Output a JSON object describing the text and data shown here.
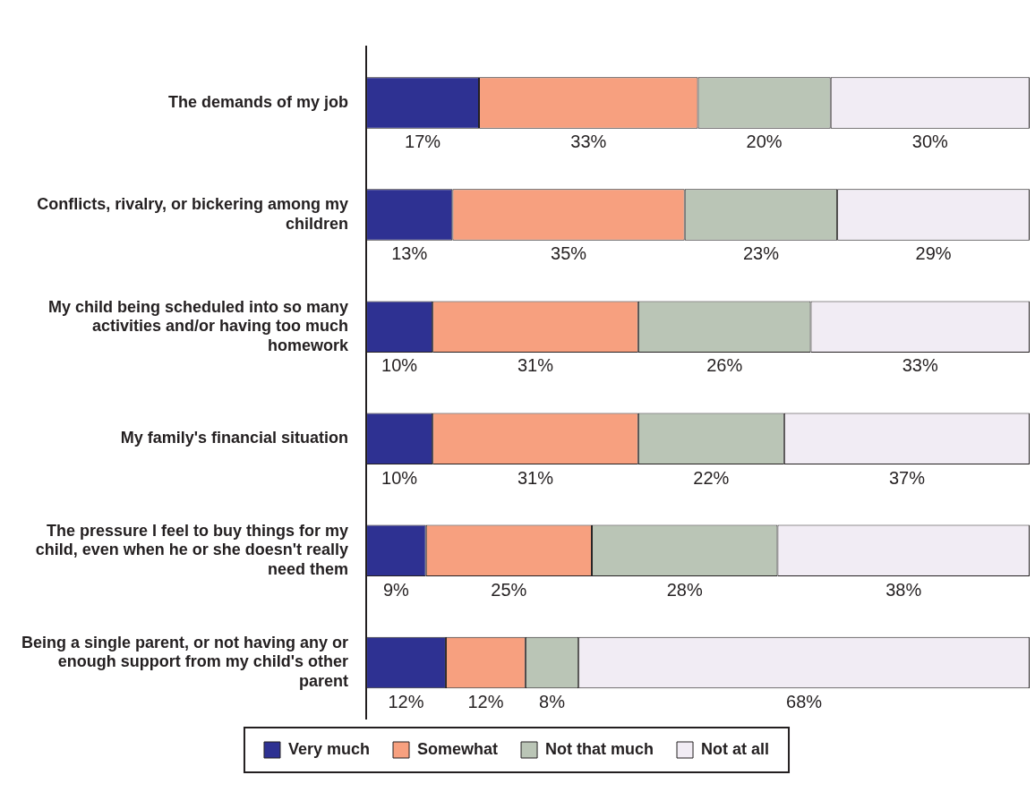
{
  "chart_data": {
    "type": "bar",
    "orientation": "horizontal",
    "stacked": true,
    "xlim": [
      0,
      100
    ],
    "tick_labels": "y",
    "legend": "bottom",
    "categories": [
      "The demands of my job",
      "Conflicts, rivalry, or bickering among my children",
      "My child being scheduled into so many activities and/or having too much homework",
      "My family's financial situation",
      "The pressure I feel to buy things for my child, even when he or she doesn't really need them",
      "Being a single parent, or not having any or enough support from my child's other parent"
    ],
    "series": [
      {
        "name": "Very much",
        "color": "#2e3192",
        "values": [
          17,
          13,
          10,
          10,
          9,
          12
        ],
        "value_labels": [
          "17%",
          "13%",
          "10%",
          "10%",
          "9%",
          "12%"
        ]
      },
      {
        "name": "Somewhat",
        "color": "#f7a07f",
        "values": [
          33,
          35,
          31,
          31,
          25,
          12
        ],
        "value_labels": [
          "33%",
          "35%",
          "31%",
          "31%",
          "25%",
          "12%"
        ]
      },
      {
        "name": "Not that much",
        "color": "#bac5b6",
        "values": [
          20,
          23,
          26,
          22,
          28,
          8
        ],
        "value_labels": [
          "20%",
          "23%",
          "26%",
          "22%",
          "28%",
          "8%"
        ]
      },
      {
        "name": "Not at all",
        "color": "#f1ecf4",
        "values": [
          30,
          29,
          33,
          37,
          38,
          68
        ],
        "value_labels": [
          "30%",
          "29%",
          "33%",
          "37%",
          "38%",
          "68%"
        ]
      }
    ]
  }
}
